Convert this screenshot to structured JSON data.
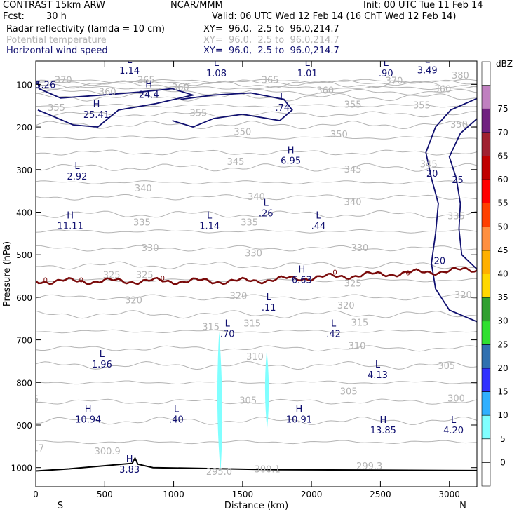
{
  "header": {
    "model": "CONTRAST 15km ARW",
    "org": "NCAR/MMM",
    "init": "Init: 00 UTC Tue 11 Feb 14",
    "fcst_label": "Fcst:",
    "fcst_value": "30 h",
    "valid": "Valid: 06 UTC Wed 12 Feb 14 (16 ChT Wed 12 Feb 14)",
    "fields": [
      {
        "name": "Radar reflectivity (lamda = 10 cm)",
        "xy": "XY=  96.0,  2.5 to  96.0,214.7",
        "color": "#000000"
      },
      {
        "name": "Potential temperature",
        "xy": "XY=  96.0,  2.5 to  96.0,214.7",
        "color": "#b4b4b4"
      },
      {
        "name": "Horizontal wind speed",
        "xy": "XY=  96.0,  2.5 to  96.0,214.7",
        "color": "#101070"
      }
    ]
  },
  "chart_data": {
    "type": "cross-section contour",
    "xlabel": "Distance (km)",
    "ylabel": "Pressure (hPa)",
    "xlim": [
      0,
      3200
    ],
    "ylim": [
      1045,
      45
    ],
    "x_ticks": [
      "0",
      "500",
      "1000",
      "1500",
      "2000",
      "2500",
      "3000"
    ],
    "y_ticks": [
      "100",
      "200",
      "300",
      "400",
      "500",
      "600",
      "700",
      "800",
      "900",
      "1000"
    ],
    "x_ends": {
      "left": "S",
      "right": "N"
    },
    "theta_labels": [
      {
        "t": "370",
        "x": 200,
        "p": 90
      },
      {
        "t": "365",
        "x": 800,
        "p": 90
      },
      {
        "t": "365",
        "x": 1700,
        "p": 90
      },
      {
        "t": "370",
        "x": 2600,
        "p": 92
      },
      {
        "t": "380",
        "x": 3080,
        "p": 80
      },
      {
        "t": "360",
        "x": 520,
        "p": 118
      },
      {
        "t": "360",
        "x": 1050,
        "p": 108
      },
      {
        "t": "360",
        "x": 2100,
        "p": 115
      },
      {
        "t": "360",
        "x": 2950,
        "p": 112
      },
      {
        "t": "355",
        "x": 150,
        "p": 155
      },
      {
        "t": "355",
        "x": 1180,
        "p": 168
      },
      {
        "t": "355",
        "x": 2300,
        "p": 148
      },
      {
        "t": "355",
        "x": 2800,
        "p": 150
      },
      {
        "t": "350",
        "x": 1500,
        "p": 212
      },
      {
        "t": "350",
        "x": 2200,
        "p": 218
      },
      {
        "t": "350",
        "x": 3070,
        "p": 195
      },
      {
        "t": "345",
        "x": 1450,
        "p": 282
      },
      {
        "t": "345",
        "x": 2300,
        "p": 300
      },
      {
        "t": "345",
        "x": 2850,
        "p": 288
      },
      {
        "t": "340",
        "x": 780,
        "p": 345
      },
      {
        "t": "340",
        "x": 1600,
        "p": 365
      },
      {
        "t": "340",
        "x": 2300,
        "p": 377
      },
      {
        "t": "335",
        "x": 770,
        "p": 425
      },
      {
        "t": "335",
        "x": 1550,
        "p": 425
      },
      {
        "t": "335",
        "x": 3050,
        "p": 410
      },
      {
        "t": "330",
        "x": 830,
        "p": 485
      },
      {
        "t": "330",
        "x": 1580,
        "p": 497
      },
      {
        "t": "330",
        "x": 2350,
        "p": 485
      },
      {
        "t": "325",
        "x": 550,
        "p": 548
      },
      {
        "t": "325",
        "x": 790,
        "p": 548
      },
      {
        "t": "325",
        "x": 2300,
        "p": 568
      },
      {
        "t": "320",
        "x": 710,
        "p": 608
      },
      {
        "t": "320",
        "x": 1470,
        "p": 598
      },
      {
        "t": "320",
        "x": 2250,
        "p": 620
      },
      {
        "t": "320",
        "x": 3100,
        "p": 595
      },
      {
        "t": "315",
        "x": 1270,
        "p": 670
      },
      {
        "t": "315",
        "x": 1570,
        "p": 662
      },
      {
        "t": "315",
        "x": 2350,
        "p": 660
      },
      {
        "t": "310",
        "x": 1590,
        "p": 740
      },
      {
        "t": "310",
        "x": 2330,
        "p": 715
      },
      {
        "t": "305",
        "x": 1540,
        "p": 843
      },
      {
        "t": "305",
        "x": 2270,
        "p": 822
      },
      {
        "t": "305",
        "x": 2980,
        "p": 762
      },
      {
        "t": "300",
        "x": 3050,
        "p": 838
      },
      {
        "t": "300.9",
        "x": 520,
        "p": 963
      },
      {
        "t": "295.0",
        "x": 1330,
        "p": 1010
      },
      {
        "t": "300.1",
        "x": 1680,
        "p": 1005
      },
      {
        "t": "299.3",
        "x": 2420,
        "p": 997
      },
      {
        "t": ".7",
        "x": 30,
        "p": 955
      },
      {
        "t": "5",
        "x": 0,
        "p": 840
      }
    ],
    "hl_labels": [
      {
        "tag": "L",
        "val": "1.14",
        "x": 680,
        "p": 73
      },
      {
        "tag": "L",
        "val": "1.08",
        "x": 1310,
        "p": 80
      },
      {
        "tag": "L",
        "val": "1.01",
        "x": 1970,
        "p": 80
      },
      {
        "tag": "L",
        "val": ".90",
        "x": 2540,
        "p": 80
      },
      {
        "tag": "L",
        "val": "3.49",
        "x": 2840,
        "p": 72
      },
      {
        "tag": "",
        "val": "5.26",
        "x": 70,
        "p": 107
      },
      {
        "tag": "H",
        "val": "24.4",
        "x": 820,
        "p": 130
      },
      {
        "tag": "H",
        "val": "25.41",
        "x": 440,
        "p": 177
      },
      {
        "tag": "L",
        "val": ".74",
        "x": 1790,
        "p": 160
      },
      {
        "tag": "H",
        "val": "6.95",
        "x": 1850,
        "p": 285
      },
      {
        "tag": "L",
        "val": "2.92",
        "x": 300,
        "p": 322
      },
      {
        "tag": "L",
        "val": ".26",
        "x": 1670,
        "p": 408
      },
      {
        "tag": "H",
        "val": "11.11",
        "x": 250,
        "p": 438
      },
      {
        "tag": "L",
        "val": "1.14",
        "x": 1260,
        "p": 438
      },
      {
        "tag": "L",
        "val": ".44",
        "x": 2050,
        "p": 438
      },
      {
        "tag": "H",
        "val": "6.63",
        "x": 1930,
        "p": 565
      },
      {
        "tag": "L",
        "val": ".11",
        "x": 1690,
        "p": 630
      },
      {
        "tag": "L",
        "val": ".70",
        "x": 1390,
        "p": 692
      },
      {
        "tag": "L",
        "val": ".42",
        "x": 2160,
        "p": 692
      },
      {
        "tag": "L",
        "val": "1.96",
        "x": 480,
        "p": 763
      },
      {
        "tag": "L",
        "val": "4.13",
        "x": 2480,
        "p": 788
      },
      {
        "tag": "H",
        "val": "10.94",
        "x": 380,
        "p": 893
      },
      {
        "tag": "L",
        "val": ".40",
        "x": 1020,
        "p": 893
      },
      {
        "tag": "H",
        "val": "10.91",
        "x": 1910,
        "p": 893
      },
      {
        "tag": "H",
        "val": "13.85",
        "x": 2520,
        "p": 918
      },
      {
        "tag": "L",
        "val": "4.20",
        "x": 3030,
        "p": 918
      },
      {
        "tag": "H",
        "val": "3.83",
        "x": 680,
        "p": 1010
      }
    ],
    "wind_contour_labels": [
      {
        "t": "20",
        "x": 2875,
        "p": 310
      },
      {
        "t": "25",
        "x": 3060,
        "p": 325
      },
      {
        "t": "20",
        "x": 2930,
        "p": 515
      }
    ],
    "zero_labels": [
      {
        "t": "0",
        "x": 70,
        "p": 558
      },
      {
        "t": "0",
        "x": 330,
        "p": 558
      },
      {
        "t": "0",
        "x": 920,
        "p": 554
      },
      {
        "t": "0",
        "x": 2170,
        "p": 540
      },
      {
        "t": "0",
        "x": 2700,
        "p": 542
      }
    ],
    "legend": {
      "title": "dBZ",
      "levels": [
        "0",
        "5",
        "10",
        "15",
        "20",
        "25",
        "30",
        "35",
        "40",
        "45",
        "50",
        "55",
        "60",
        "65",
        "70",
        "75"
      ],
      "colors": [
        "#ffffff",
        "#ffffff",
        "#80ffff",
        "#30b0ff",
        "#3030ff",
        "#3070b0",
        "#30e030",
        "#30a030",
        "#ffd800",
        "#ffb000",
        "#ff9040",
        "#ff4000",
        "#ff0000",
        "#c00000",
        "#a02030",
        "#702080",
        "#c080c0",
        "#ffffff"
      ]
    },
    "colors": {
      "theta": "#b4b4b4",
      "wind": "#101070",
      "freezing": "#7a0a0a",
      "terrain": "#000000",
      "reflectivity": "#80ffff"
    }
  }
}
